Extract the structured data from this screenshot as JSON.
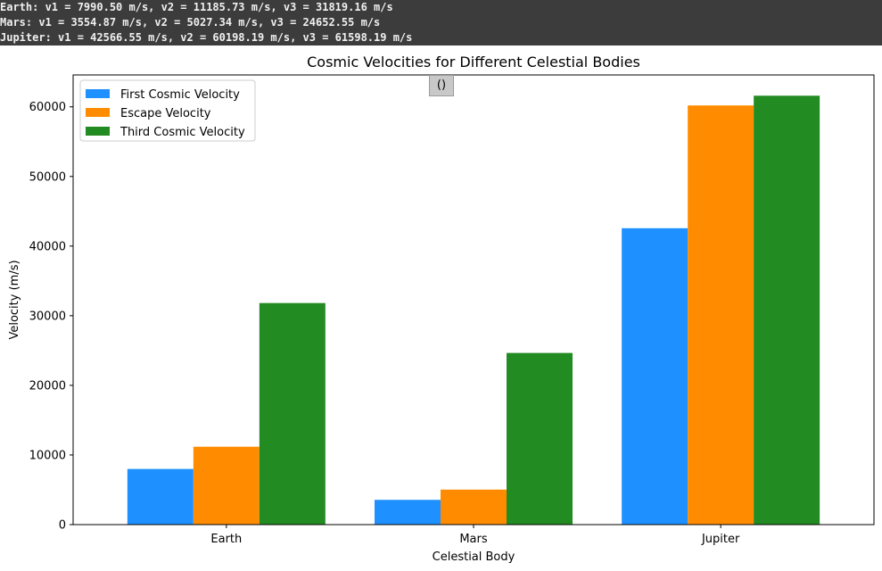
{
  "console": {
    "lines": [
      "Earth: v1 = 7990.50 m/s, v2 = 11185.73 m/s, v3 = 31819.16 m/s",
      "Mars: v1 = 3554.87 m/s, v2 = 5027.34 m/s, v3 = 24652.55 m/s",
      "Jupiter: v1 = 42566.55 m/s, v2 = 60198.19 m/s, v3 = 61598.19 m/s"
    ]
  },
  "overlay": {
    "text": "()"
  },
  "chart_data": {
    "type": "bar",
    "title": "Cosmic Velocities for Different Celestial Bodies",
    "xlabel": "Celestial Body",
    "ylabel": "Velocity (m/s)",
    "categories": [
      "Earth",
      "Mars",
      "Jupiter"
    ],
    "series": [
      {
        "name": "First Cosmic Velocity",
        "color": "#1e90ff",
        "values": [
          7990.5,
          3554.87,
          42566.55
        ]
      },
      {
        "name": "Escape Velocity",
        "color": "#ff8c00",
        "values": [
          11185.73,
          5027.34,
          60198.19
        ]
      },
      {
        "name": "Third Cosmic Velocity",
        "color": "#228b22",
        "values": [
          31819.16,
          24652.55,
          61598.19
        ]
      }
    ],
    "ylim": [
      0,
      64579.1
    ],
    "yticks": [
      "0",
      "10000",
      "20000",
      "30000",
      "40000",
      "50000",
      "60000"
    ],
    "ytick_values": [
      0,
      10000,
      20000,
      30000,
      40000,
      50000,
      60000
    ],
    "grid": false,
    "legend_position": "upper-left"
  }
}
